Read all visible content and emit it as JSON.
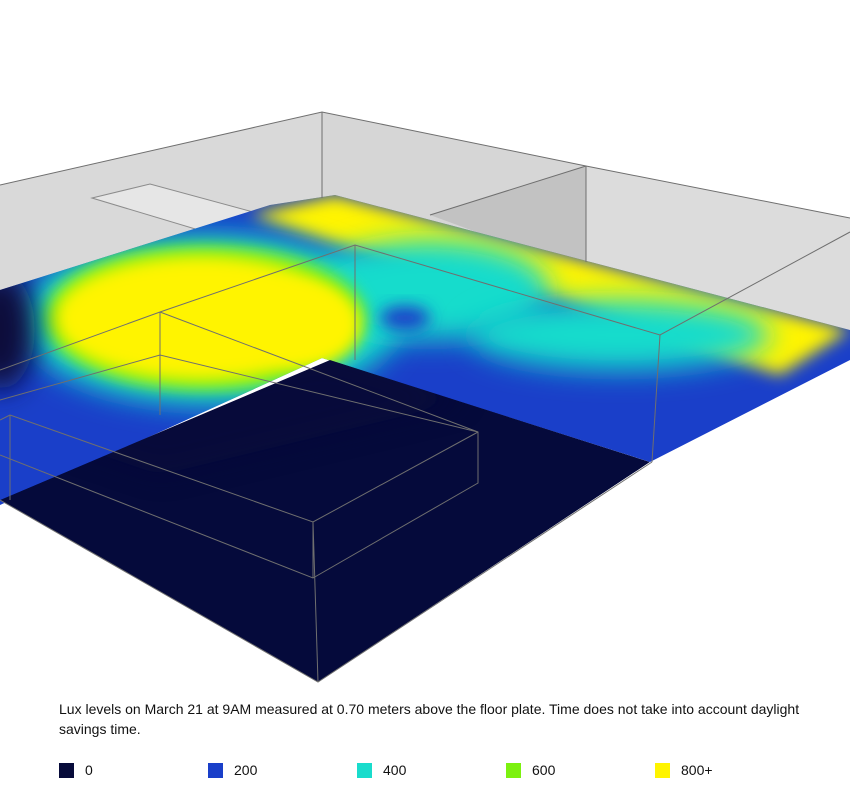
{
  "caption": "Lux levels on March 21 at 9AM measured at 0.70 meters above the floor plate. Time does not take into account daylight savings time.",
  "legend": [
    {
      "label": "0",
      "color": "#070b3a"
    },
    {
      "label": "200",
      "color": "#1a3fc9"
    },
    {
      "label": "400",
      "color": "#19dccc"
    },
    {
      "label": "600",
      "color": "#7cf10f"
    },
    {
      "label": "800+",
      "color": "#fff400"
    }
  ],
  "colors": {
    "wall": "#d9d9d9",
    "wall_shadow": "#c4c4c4",
    "edge": "#6f6f6f",
    "dark_zone": "#050a3b",
    "mid_zone": "#1a3fc9",
    "cyan_zone": "#19dccc",
    "bright_zone": "#fff400"
  }
}
